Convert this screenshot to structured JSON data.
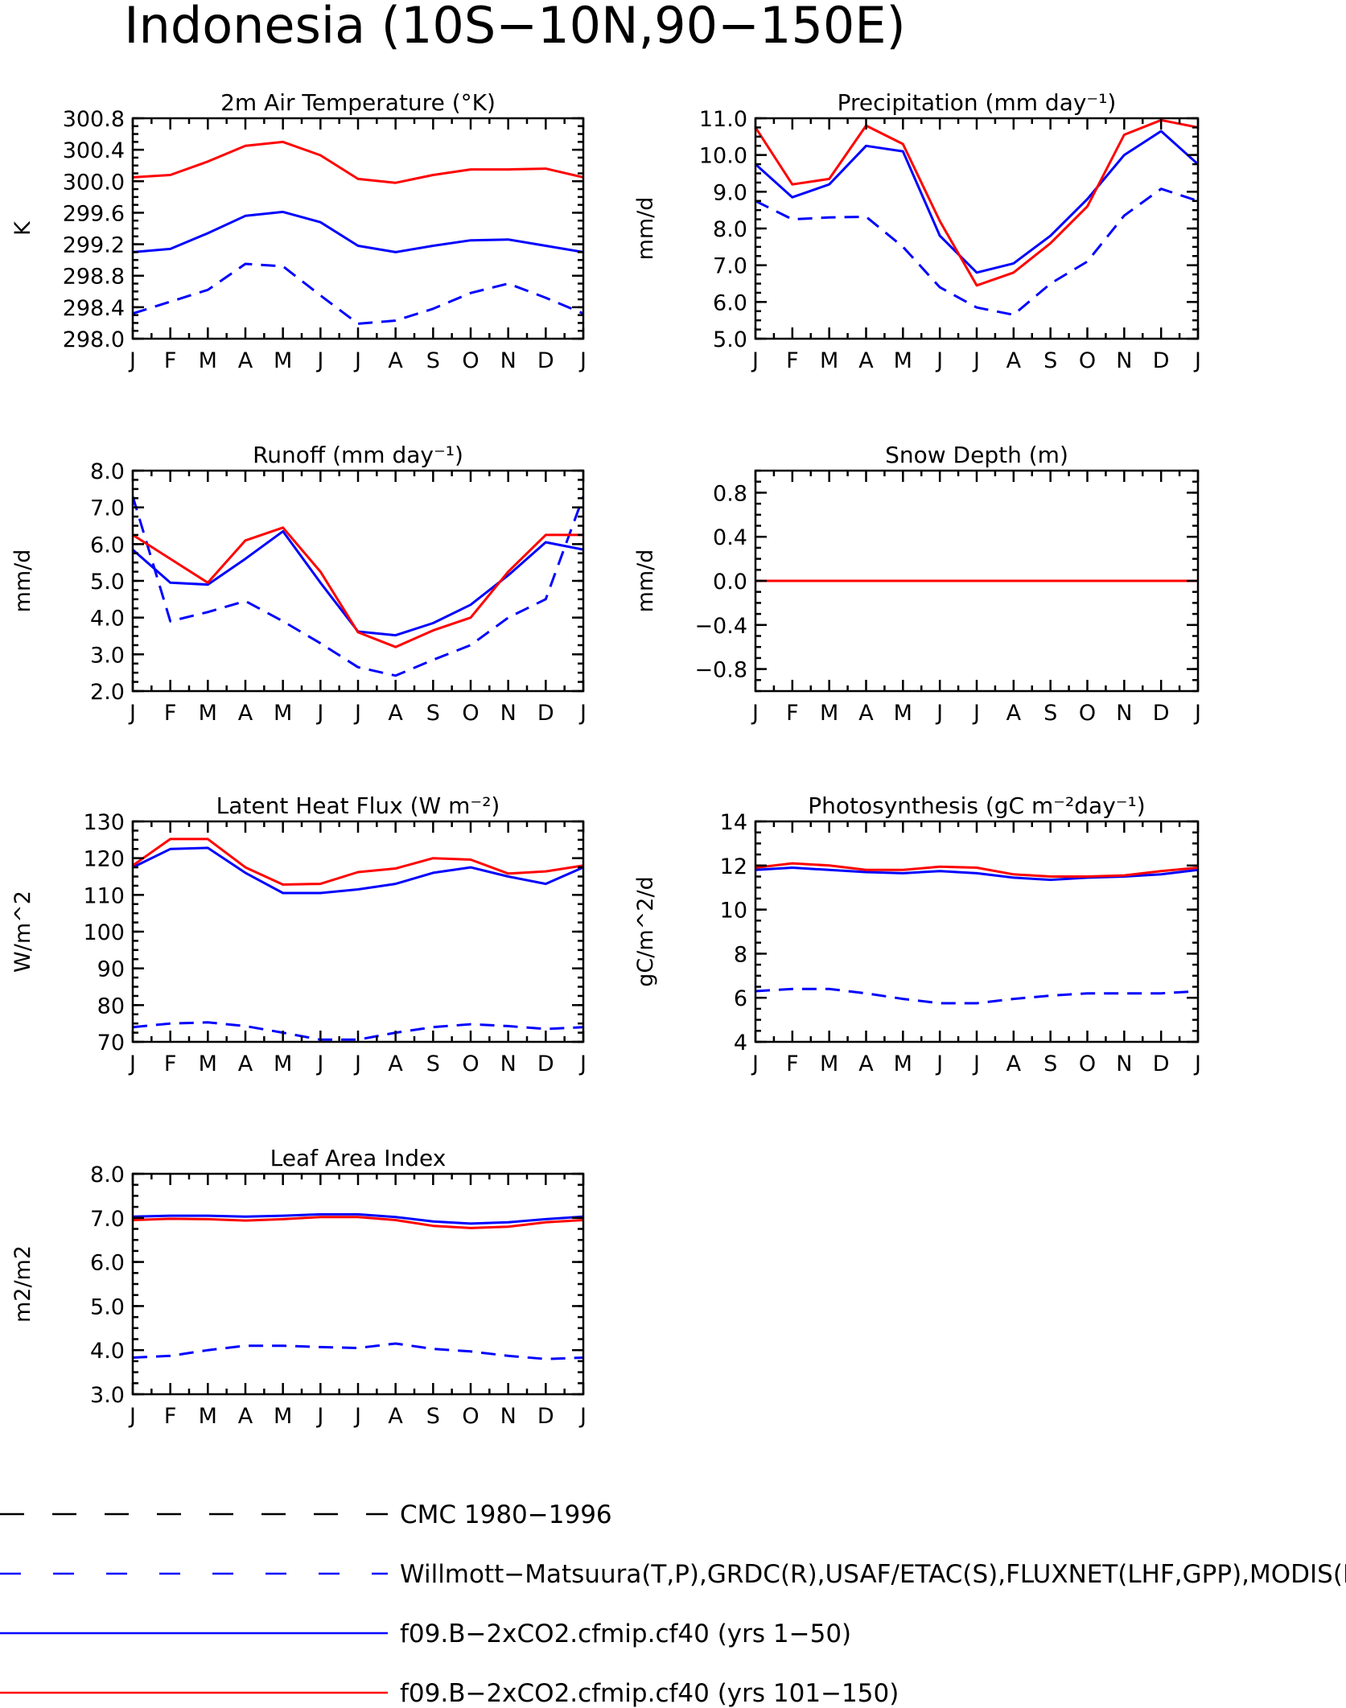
{
  "figure": {
    "title": "Indonesia (10S−10N,90−150E)"
  },
  "series_styles": [
    {
      "color": "#000000",
      "dash": "long-dash"
    },
    {
      "color": "#0000ff",
      "dash": "dash"
    },
    {
      "color": "#0000ff",
      "dash": "solid"
    },
    {
      "color": "#ff0000",
      "dash": "solid"
    }
  ],
  "legend": [
    {
      "label": "CMC 1980−1996"
    },
    {
      "label": "Willmott−Matsuura(T,P),GRDC(R),USAF/ETAC(S),FLUXNET(LHF,GPP),MODIS(L"
    },
    {
      "label": "f09.B−2xCO2.cfmip.cf40 (yrs 1−50)"
    },
    {
      "label": "f09.B−2xCO2.cfmip.cf40 (yrs 101−150)"
    }
  ],
  "chart_data": [
    {
      "type": "line",
      "title": "2m Air Temperature (°K)",
      "ylabel": "K",
      "categories": [
        "J",
        "F",
        "M",
        "A",
        "M",
        "J",
        "J",
        "A",
        "S",
        "O",
        "N",
        "D",
        "J"
      ],
      "ylim": [
        298.0,
        300.8
      ],
      "yticks": [
        "298.0",
        "298.4",
        "298.8",
        "299.2",
        "299.6",
        "300.0",
        "300.4",
        "300.8"
      ],
      "ytick_values": [
        298.0,
        298.4,
        298.8,
        299.2,
        299.6,
        300.0,
        300.4,
        300.8
      ],
      "series": [
        {
          "style": 1,
          "values": [
            298.32,
            298.47,
            298.62,
            298.95,
            298.92,
            298.55,
            298.19,
            298.23,
            298.38,
            298.58,
            298.7,
            298.52,
            298.32
          ]
        },
        {
          "style": 2,
          "values": [
            299.1,
            299.14,
            299.34,
            299.56,
            299.61,
            299.48,
            299.18,
            299.1,
            299.18,
            299.25,
            299.26,
            299.18,
            299.1
          ]
        },
        {
          "style": 3,
          "values": [
            300.05,
            300.08,
            300.25,
            300.45,
            300.5,
            300.33,
            300.03,
            299.98,
            300.08,
            300.15,
            300.15,
            300.16,
            300.05
          ]
        }
      ]
    },
    {
      "type": "line",
      "title": "Precipitation (mm day⁻¹)",
      "ylabel": "mm/d",
      "categories": [
        "J",
        "F",
        "M",
        "A",
        "M",
        "J",
        "J",
        "A",
        "S",
        "O",
        "N",
        "D",
        "J"
      ],
      "ylim": [
        5.0,
        11.0
      ],
      "yticks": [
        "5.0",
        "6.0",
        "7.0",
        "8.0",
        "9.0",
        "10.0",
        "11.0"
      ],
      "ytick_values": [
        5.0,
        6.0,
        7.0,
        8.0,
        9.0,
        10.0,
        11.0
      ],
      "series": [
        {
          "style": 1,
          "values": [
            8.75,
            8.25,
            8.3,
            8.32,
            7.5,
            6.4,
            5.85,
            5.65,
            6.5,
            7.1,
            8.35,
            9.08,
            8.75
          ]
        },
        {
          "style": 2,
          "values": [
            9.75,
            8.85,
            9.2,
            10.25,
            10.1,
            7.8,
            6.8,
            7.05,
            7.8,
            8.8,
            10.0,
            10.65,
            9.75
          ]
        },
        {
          "style": 3,
          "values": [
            10.75,
            9.2,
            9.35,
            10.8,
            10.3,
            8.2,
            6.45,
            6.8,
            7.6,
            8.6,
            10.55,
            10.95,
            10.75
          ]
        }
      ]
    },
    {
      "type": "line",
      "title": "Runoff (mm day⁻¹)",
      "ylabel": "mm/d",
      "categories": [
        "J",
        "F",
        "M",
        "A",
        "M",
        "J",
        "J",
        "A",
        "S",
        "O",
        "N",
        "D",
        "J"
      ],
      "ylim": [
        2.0,
        8.0
      ],
      "yticks": [
        "2.0",
        "3.0",
        "4.0",
        "5.0",
        "6.0",
        "7.0",
        "8.0"
      ],
      "ytick_values": [
        2.0,
        3.0,
        4.0,
        5.0,
        6.0,
        7.0,
        8.0
      ],
      "series": [
        {
          "style": 1,
          "values": [
            7.3,
            3.9,
            4.15,
            4.45,
            3.9,
            3.3,
            2.65,
            2.42,
            2.85,
            3.25,
            4.0,
            4.5,
            7.3
          ]
        },
        {
          "style": 2,
          "values": [
            5.85,
            4.95,
            4.9,
            5.6,
            6.35,
            4.95,
            3.62,
            3.52,
            3.85,
            4.35,
            5.15,
            6.05,
            5.85
          ]
        },
        {
          "style": 3,
          "values": [
            6.25,
            5.6,
            4.95,
            6.1,
            6.45,
            5.25,
            3.6,
            3.2,
            3.65,
            4.0,
            5.25,
            6.25,
            6.25
          ]
        }
      ]
    },
    {
      "type": "line",
      "title": "Snow Depth (m)",
      "ylabel": "mm/d",
      "categories": [
        "J",
        "F",
        "M",
        "A",
        "M",
        "J",
        "J",
        "A",
        "S",
        "O",
        "N",
        "D",
        "J"
      ],
      "ylim": [
        -1.0,
        1.0
      ],
      "yticks": [
        "−0.8",
        "−0.4",
        "0.0",
        "0.4",
        "0.8"
      ],
      "ytick_values": [
        -0.8,
        -0.4,
        0.0,
        0.4,
        0.8
      ],
      "series": [
        {
          "style": 1,
          "values": [
            0,
            0,
            0,
            0,
            0,
            0,
            0,
            0,
            0,
            0,
            0,
            0,
            0
          ]
        },
        {
          "style": 2,
          "values": [
            0,
            0,
            0,
            0,
            0,
            0,
            0,
            0,
            0,
            0,
            0,
            0,
            0
          ]
        },
        {
          "style": 3,
          "values": [
            0,
            0,
            0,
            0,
            0,
            0,
            0,
            0,
            0,
            0,
            0,
            0,
            0
          ]
        }
      ]
    },
    {
      "type": "line",
      "title": "Latent Heat Flux (W m⁻²)",
      "ylabel": "W/m^2",
      "categories": [
        "J",
        "F",
        "M",
        "A",
        "M",
        "J",
        "J",
        "A",
        "S",
        "O",
        "N",
        "D",
        "J"
      ],
      "ylim": [
        70,
        130
      ],
      "yticks": [
        "70",
        "80",
        "90",
        "100",
        "110",
        "120",
        "130"
      ],
      "ytick_values": [
        70,
        80,
        90,
        100,
        110,
        120,
        130
      ],
      "series": [
        {
          "style": 1,
          "values": [
            74,
            75,
            75.3,
            74.3,
            72.5,
            70.6,
            70.6,
            72.5,
            74,
            74.8,
            74.3,
            73.5,
            74
          ]
        },
        {
          "style": 2,
          "values": [
            117.5,
            122.5,
            122.8,
            116,
            110.5,
            110.5,
            111.5,
            113,
            116,
            117.5,
            115,
            113,
            117.5
          ]
        },
        {
          "style": 3,
          "values": [
            118,
            125.2,
            125.2,
            117.5,
            112.8,
            113,
            116.2,
            117.2,
            120,
            119.6,
            115.8,
            116.4,
            118
          ]
        }
      ]
    },
    {
      "type": "line",
      "title": "Photosynthesis (gC m⁻²day⁻¹)",
      "ylabel": "gC/m^2/d",
      "categories": [
        "J",
        "F",
        "M",
        "A",
        "M",
        "J",
        "J",
        "A",
        "S",
        "O",
        "N",
        "D",
        "J"
      ],
      "ylim": [
        4,
        14
      ],
      "yticks": [
        "4",
        "6",
        "8",
        "10",
        "12",
        "14"
      ],
      "ytick_values": [
        4,
        6,
        8,
        10,
        12,
        14
      ],
      "series": [
        {
          "style": 1,
          "values": [
            6.3,
            6.4,
            6.4,
            6.2,
            5.95,
            5.75,
            5.75,
            5.95,
            6.1,
            6.2,
            6.2,
            6.2,
            6.3
          ]
        },
        {
          "style": 2,
          "values": [
            11.8,
            11.9,
            11.8,
            11.7,
            11.65,
            11.75,
            11.65,
            11.45,
            11.35,
            11.45,
            11.5,
            11.6,
            11.8
          ]
        },
        {
          "style": 3,
          "values": [
            11.9,
            12.1,
            12.0,
            11.8,
            11.8,
            11.95,
            11.9,
            11.6,
            11.5,
            11.5,
            11.55,
            11.75,
            11.9
          ]
        }
      ]
    },
    {
      "type": "line",
      "title": "Leaf Area Index",
      "ylabel": "m2/m2",
      "categories": [
        "J",
        "F",
        "M",
        "A",
        "M",
        "J",
        "J",
        "A",
        "S",
        "O",
        "N",
        "D",
        "J"
      ],
      "ylim": [
        3.0,
        8.0
      ],
      "yticks": [
        "3.0",
        "4.0",
        "5.0",
        "6.0",
        "7.0",
        "8.0"
      ],
      "ytick_values": [
        3.0,
        4.0,
        5.0,
        6.0,
        7.0,
        8.0
      ],
      "series": [
        {
          "style": 1,
          "values": [
            3.83,
            3.87,
            4.0,
            4.1,
            4.1,
            4.07,
            4.05,
            4.15,
            4.03,
            3.97,
            3.87,
            3.8,
            3.83
          ]
        },
        {
          "style": 2,
          "values": [
            7.03,
            7.05,
            7.05,
            7.03,
            7.05,
            7.08,
            7.08,
            7.02,
            6.92,
            6.87,
            6.9,
            6.97,
            7.03
          ]
        },
        {
          "style": 3,
          "values": [
            6.95,
            6.98,
            6.97,
            6.94,
            6.97,
            7.02,
            7.02,
            6.95,
            6.82,
            6.77,
            6.8,
            6.9,
            6.95
          ]
        }
      ]
    }
  ]
}
